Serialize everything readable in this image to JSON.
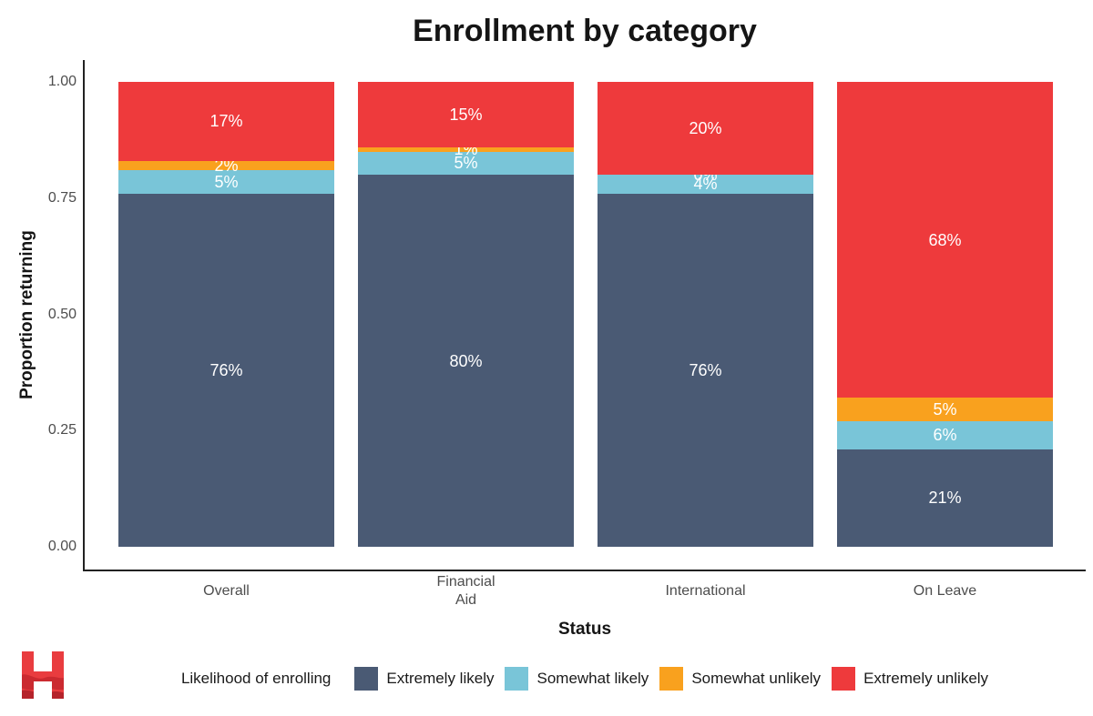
{
  "chart_data": {
    "type": "bar",
    "stacked": true,
    "title": "Enrollment by category",
    "xlabel": "Status",
    "ylabel": "Proportion returning",
    "ylim": [
      0,
      1
    ],
    "grid": false,
    "yticks": [
      {
        "label": "0.00",
        "value": 0
      },
      {
        "label": "0.25",
        "value": 0.25
      },
      {
        "label": "0.50",
        "value": 0.5
      },
      {
        "label": "0.75",
        "value": 0.75
      },
      {
        "label": "1.00",
        "value": 1
      }
    ],
    "categories": [
      "Overall",
      "Financial\nAid",
      "International",
      "On Leave"
    ],
    "series": [
      {
        "name": "Extremely likely",
        "color": "#4a5a74",
        "values": [
          76,
          80,
          76,
          21
        ],
        "labels": [
          "76%",
          "80%",
          "76%",
          "21%"
        ]
      },
      {
        "name": "Somewhat likely",
        "color": "#79c5d8",
        "values": [
          5,
          5,
          4,
          6
        ],
        "labels": [
          "5%",
          "5%",
          "4%",
          "6%"
        ]
      },
      {
        "name": "Somewhat unlikely",
        "color": "#f9a11e",
        "values": [
          2,
          1,
          0,
          5
        ],
        "labels": [
          "2%",
          "1%",
          "0%",
          "5%"
        ]
      },
      {
        "name": "Extremely unlikely",
        "color": "#ee3a3c",
        "values": [
          17,
          15,
          20,
          68
        ],
        "labels": [
          "17%",
          "15%",
          "20%",
          "68%"
        ],
        "fill_to_top": true
      }
    ],
    "legend": {
      "title": "Likelihood of enrolling",
      "position": "bottom"
    },
    "label_color": "#ffffff",
    "tick_color": "#4d4d4d",
    "axis_color": "#222222"
  },
  "branding": {
    "logo_letter": "H",
    "logo_color": "#e93c3f",
    "logo_wave_color_1": "#cb2a30",
    "logo_wave_color_2": "#b5232b"
  }
}
